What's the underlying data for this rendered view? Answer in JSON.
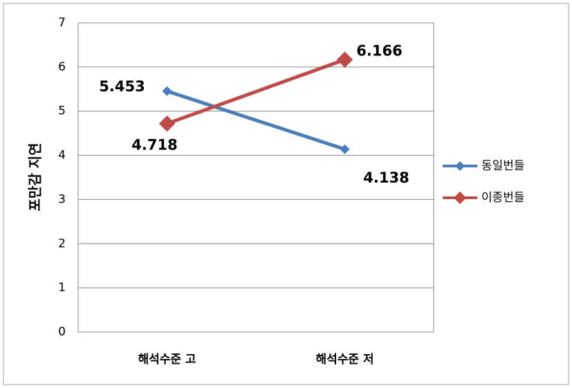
{
  "chart_data": {
    "type": "line",
    "y_label": "포만감 지연",
    "categories": [
      "해석수준 고",
      "해석수준 저"
    ],
    "series": [
      {
        "name": "동일번들",
        "color": "#4a7ebb",
        "marker": "diamond",
        "values": [
          5.453,
          4.138
        ]
      },
      {
        "name": "이종번들",
        "color": "#be4b48",
        "marker": "square",
        "values": [
          4.718,
          6.166
        ]
      }
    ],
    "ylim": [
      0,
      7
    ],
    "yticks": [
      0,
      1,
      2,
      3,
      4,
      5,
      6,
      7
    ],
    "grid": true,
    "legend": "right",
    "data_labels": true
  }
}
